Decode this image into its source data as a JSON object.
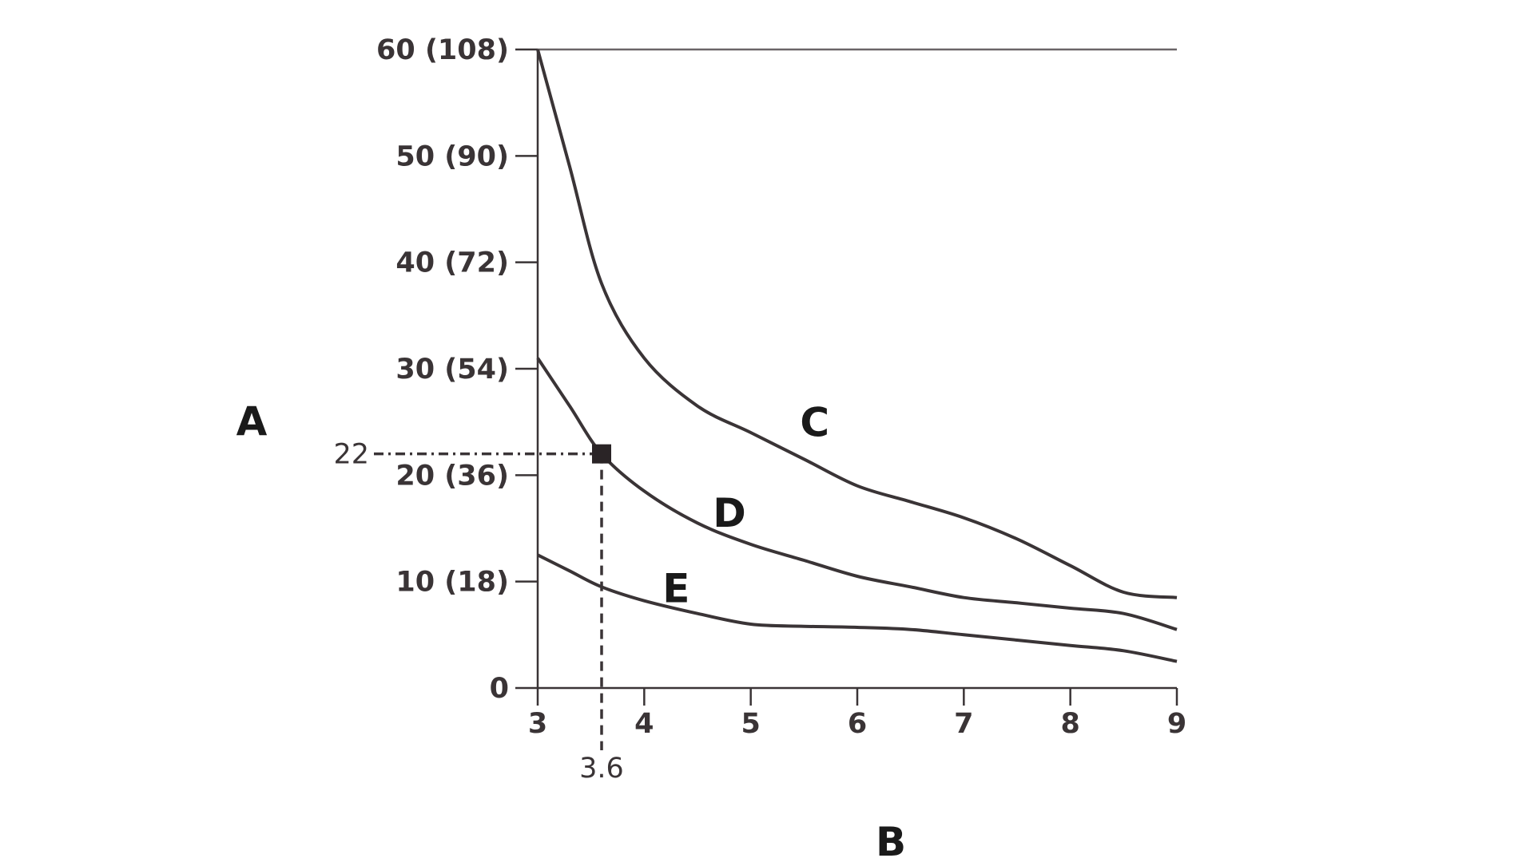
{
  "chart_data": {
    "type": "line",
    "title": "",
    "xlabel": "B",
    "ylabel": "A",
    "xlim": [
      3,
      9
    ],
    "ylim": [
      0,
      60
    ],
    "x_ticks": [
      {
        "value": 3,
        "label": "3"
      },
      {
        "value": 4,
        "label": "4"
      },
      {
        "value": 5,
        "label": "5"
      },
      {
        "value": 6,
        "label": "6"
      },
      {
        "value": 7,
        "label": "7"
      },
      {
        "value": 8,
        "label": "8"
      },
      {
        "value": 9,
        "label": "9"
      }
    ],
    "y_ticks": [
      {
        "value": 0,
        "label": "0"
      },
      {
        "value": 10,
        "label": "10 (18)"
      },
      {
        "value": 20,
        "label": "20 (36)"
      },
      {
        "value": 30,
        "label": "30 (54)"
      },
      {
        "value": 40,
        "label": "40 (72)"
      },
      {
        "value": 50,
        "label": "50 (90)"
      },
      {
        "value": 60,
        "label": "60 (108)"
      }
    ],
    "top_reference_line": 60,
    "grid": false,
    "series": [
      {
        "name": "C",
        "x": [
          3,
          3.3,
          3.6,
          4,
          4.5,
          5,
          5.5,
          6,
          6.5,
          7,
          7.5,
          8,
          8.5,
          9
        ],
        "y": [
          60,
          49,
          38,
          31,
          26.5,
          24,
          21.5,
          19,
          17.5,
          16,
          14,
          11.5,
          9,
          8.5
        ]
      },
      {
        "name": "D",
        "x": [
          3,
          3.3,
          3.6,
          4,
          4.5,
          5,
          5.5,
          6,
          6.5,
          7,
          7.5,
          8,
          8.5,
          9
        ],
        "y": [
          31,
          26.5,
          22,
          18.5,
          15.5,
          13.5,
          12,
          10.5,
          9.5,
          8.5,
          8,
          7.5,
          7,
          5.5
        ]
      },
      {
        "name": "E",
        "x": [
          3,
          3.3,
          3.6,
          4,
          4.5,
          5,
          5.5,
          6,
          6.5,
          7,
          7.5,
          8,
          8.5,
          9
        ],
        "y": [
          12.5,
          11,
          9.5,
          8.2,
          7,
          6,
          5.8,
          5.7,
          5.5,
          5,
          4.5,
          4,
          3.5,
          2.5
        ]
      }
    ],
    "annotations": [
      {
        "x": 3.6,
        "y": 22,
        "x_label": "3.6",
        "y_label": "22"
      }
    ],
    "series_label_positions": [
      {
        "name": "C",
        "x": 5.6,
        "y": 25
      },
      {
        "name": "D",
        "x": 4.8,
        "y": 16.5
      },
      {
        "name": "E",
        "x": 4.3,
        "y": 9.4
      }
    ]
  }
}
